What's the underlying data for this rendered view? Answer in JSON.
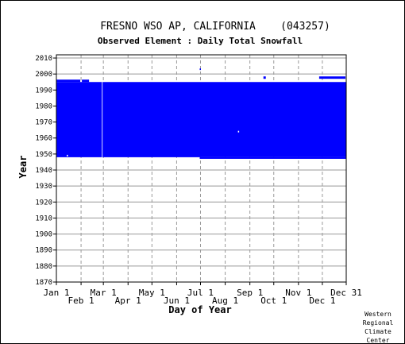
{
  "chart_data": {
    "type": "heatmap",
    "title": "FRESNO WSO AP, CALIFORNIA    (043257)",
    "subtitle": "Observed Element : Daily Total Snowfall",
    "xlabel": "Day of Year",
    "ylabel": "Year",
    "credit": [
      "Western",
      "Regional",
      "Climate",
      "Center"
    ],
    "x_ticks_upper": [
      {
        "label": "Jan 1",
        "day": 1
      },
      {
        "label": "Mar 1",
        "day": 60
      },
      {
        "label": "May 1",
        "day": 121
      },
      {
        "label": "Jul 1",
        "day": 182
      },
      {
        "label": "Sep 1",
        "day": 244
      },
      {
        "label": "Nov 1",
        "day": 305
      },
      {
        "label": "Dec 31",
        "day": 365
      }
    ],
    "x_ticks_lower": [
      {
        "label": "Feb 1",
        "day": 32
      },
      {
        "label": "Apr 1",
        "day": 91
      },
      {
        "label": "Jun 1",
        "day": 152
      },
      {
        "label": "Aug 1",
        "day": 213
      },
      {
        "label": "Oct 1",
        "day": 274
      },
      {
        "label": "Dec 1",
        "day": 335
      }
    ],
    "y_ticks": [
      1870,
      1880,
      1890,
      1900,
      1910,
      1920,
      1930,
      1940,
      1950,
      1960,
      1970,
      1980,
      1990,
      2000,
      2010
    ],
    "xlim": [
      1,
      365
    ],
    "ylim": [
      1870,
      2012
    ],
    "grid": true,
    "fill_color": "#0000ff",
    "data_region": {
      "start_year": 1948,
      "end_year": 1995,
      "start_day": 1,
      "end_day": 365
    },
    "extra_years": [
      1996
    ],
    "extra_segments": [
      {
        "year_from": 1995,
        "year_to": 1996.5,
        "day_from": 1,
        "day_to": 31
      },
      {
        "year_from": 1995,
        "year_to": 1996.5,
        "day_from": 33,
        "day_to": 42
      },
      {
        "year_from": 1997,
        "year_to": 1998.5,
        "day_from": 331,
        "day_to": 364
      },
      {
        "year_from": 1997,
        "year_to": 1998.5,
        "day_from": 261,
        "day_to": 264
      },
      {
        "year_from": 1947,
        "year_to": 1948,
        "day_from": 181,
        "day_to": 365
      }
    ],
    "gaps": [
      {
        "year_from": 1948,
        "year_to": 1996,
        "day_from": 58,
        "day_to": 59
      }
    ],
    "isolated_marks": [
      {
        "year": 1949,
        "day": 14
      },
      {
        "year": 1964,
        "day": 229
      },
      {
        "year": 2003,
        "day": 181
      }
    ]
  }
}
